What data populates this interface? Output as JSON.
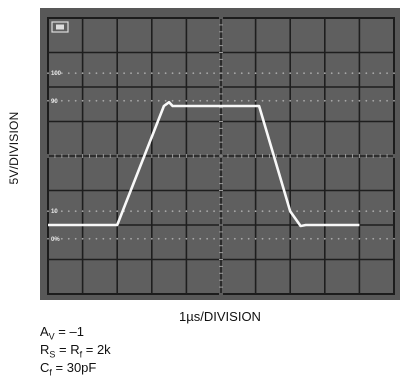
{
  "chart_data": {
    "type": "line",
    "ylabel": "5V/DIVISION",
    "xlabel": "1µs/DIVISION",
    "grid": true,
    "divisions": {
      "x": 10,
      "y": 8
    },
    "xlim": [
      0,
      10
    ],
    "ylim": [
      0,
      8
    ],
    "scope_markings": [
      "100",
      "90",
      "10",
      "0%"
    ],
    "series": [
      {
        "x": [
          0,
          2.0,
          3.35,
          3.5,
          3.6,
          6.1,
          7.0,
          7.3,
          7.45,
          7.6,
          9.0
        ],
        "y": [
          2.0,
          2.0,
          5.45,
          5.56,
          5.45,
          5.45,
          2.4,
          1.97,
          2.0,
          2.0,
          2.0
        ]
      }
    ]
  },
  "conditions": [
    {
      "main": "A",
      "sub": "V",
      "rest": " = –1"
    },
    {
      "main": "R",
      "sub": "S",
      "mid": " = R",
      "sub2": "f",
      "rest": " = 2k"
    },
    {
      "main": "C",
      "sub": "f",
      "rest": " = 30pF"
    }
  ]
}
